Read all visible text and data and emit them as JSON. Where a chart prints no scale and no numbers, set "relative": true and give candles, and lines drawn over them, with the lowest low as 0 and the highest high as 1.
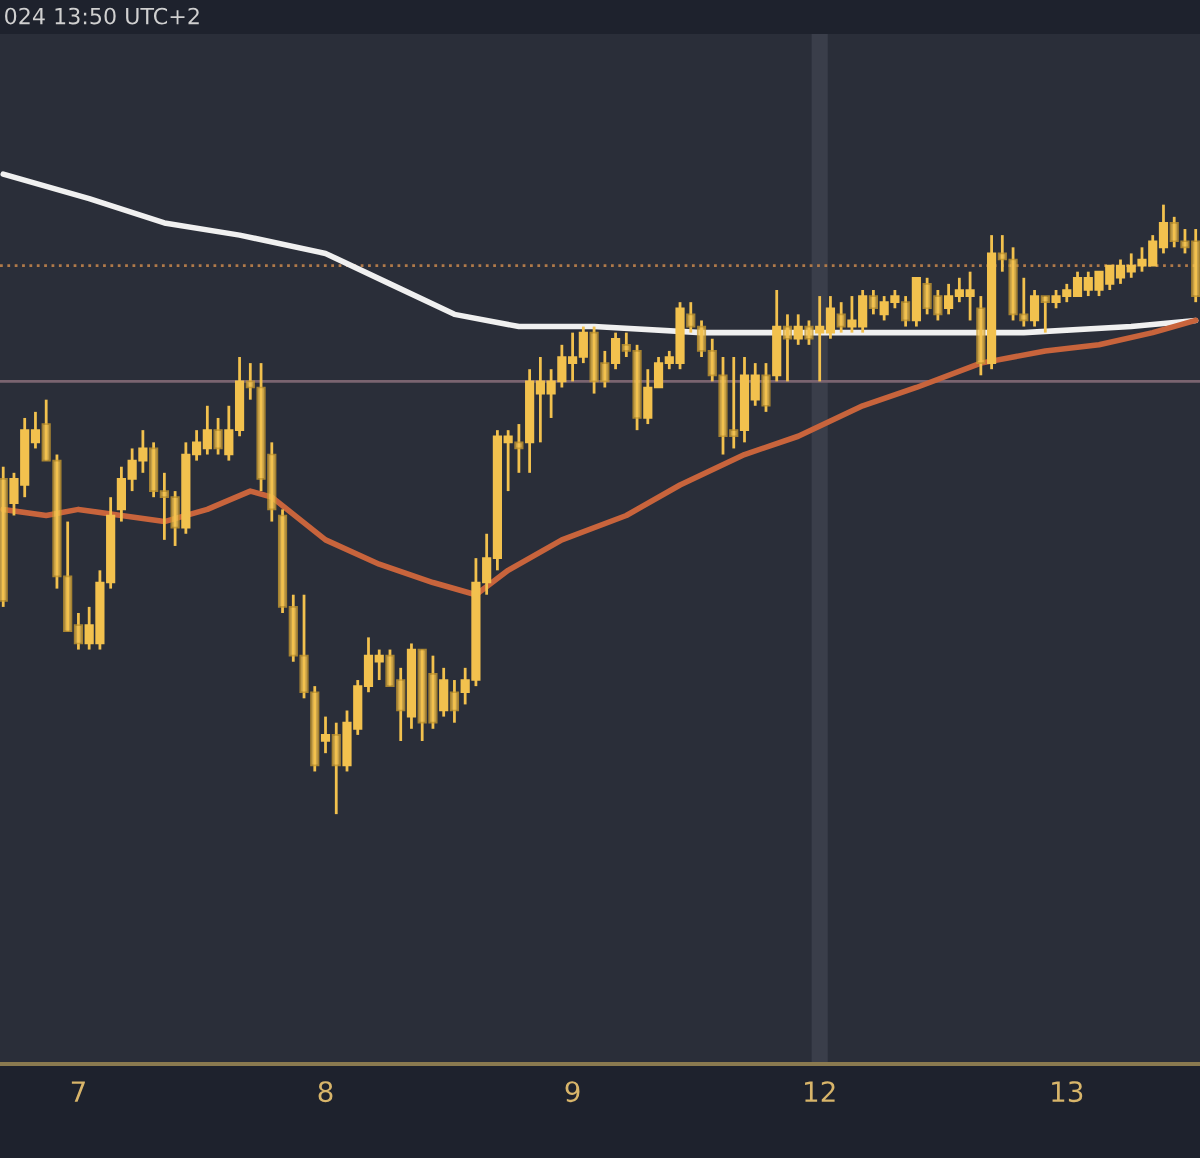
{
  "chart_data": {
    "type": "candlestick",
    "relative": true,
    "tick_labels": "x",
    "grid": false,
    "legend": false,
    "annotations": [
      "024 13:50 UTC+2"
    ],
    "categories": [
      null,
      null,
      null,
      null,
      null,
      null,
      null,
      "7",
      null,
      null,
      null,
      null,
      null,
      null,
      null,
      null,
      null,
      null,
      null,
      null,
      null,
      null,
      null,
      null,
      null,
      null,
      null,
      null,
      null,
      null,
      "8",
      null,
      null,
      null,
      null,
      null,
      null,
      null,
      null,
      null,
      null,
      null,
      null,
      null,
      null,
      null,
      null,
      null,
      null,
      null,
      null,
      null,
      null,
      "9",
      null,
      null,
      null,
      null,
      null,
      null,
      null,
      null,
      null,
      null,
      null,
      null,
      null,
      null,
      null,
      null,
      null,
      null,
      null,
      null,
      null,
      null,
      "12",
      null,
      null,
      null,
      null,
      null,
      null,
      null,
      null,
      null,
      null,
      null,
      null,
      null,
      null,
      null,
      null,
      null,
      null,
      null,
      null,
      null,
      null,
      "13",
      null,
      null,
      null,
      null,
      null,
      null,
      null,
      null,
      null,
      null,
      null,
      null
    ],
    "color": "#f2c14e",
    "ohlc": [
      [
        0.55,
        0.57,
        0.34,
        0.35
      ],
      [
        0.51,
        0.56,
        0.49,
        0.55
      ],
      [
        0.54,
        0.65,
        0.52,
        0.63
      ],
      [
        0.61,
        0.66,
        0.6,
        0.63
      ],
      [
        0.64,
        0.68,
        0.58,
        0.58
      ],
      [
        0.58,
        0.59,
        0.37,
        0.39
      ],
      [
        0.39,
        0.48,
        0.3,
        0.3
      ],
      [
        0.31,
        0.33,
        0.27,
        0.28
      ],
      [
        0.28,
        0.34,
        0.27,
        0.31
      ],
      [
        0.28,
        0.4,
        0.27,
        0.38
      ],
      [
        0.38,
        0.52,
        0.37,
        0.49
      ],
      [
        0.5,
        0.57,
        0.48,
        0.55
      ],
      [
        0.55,
        0.6,
        0.53,
        0.58
      ],
      [
        0.58,
        0.63,
        0.56,
        0.6
      ],
      [
        0.6,
        0.61,
        0.52,
        0.53
      ],
      [
        0.53,
        0.56,
        0.45,
        0.52
      ],
      [
        0.52,
        0.53,
        0.44,
        0.47
      ],
      [
        0.47,
        0.61,
        0.46,
        0.59
      ],
      [
        0.59,
        0.63,
        0.58,
        0.61
      ],
      [
        0.6,
        0.67,
        0.59,
        0.63
      ],
      [
        0.63,
        0.65,
        0.59,
        0.6
      ],
      [
        0.59,
        0.67,
        0.58,
        0.63
      ],
      [
        0.63,
        0.75,
        0.62,
        0.71
      ],
      [
        0.71,
        0.74,
        0.68,
        0.7
      ],
      [
        0.7,
        0.74,
        0.53,
        0.55
      ],
      [
        0.59,
        0.61,
        0.48,
        0.5
      ],
      [
        0.49,
        0.5,
        0.33,
        0.34
      ],
      [
        0.34,
        0.36,
        0.25,
        0.26
      ],
      [
        0.26,
        0.36,
        0.19,
        0.2
      ],
      [
        0.2,
        0.21,
        0.07,
        0.08
      ],
      [
        0.12,
        0.16,
        0.1,
        0.13
      ],
      [
        0.13,
        0.15,
        0.0,
        0.08
      ],
      [
        0.08,
        0.17,
        0.07,
        0.15
      ],
      [
        0.14,
        0.22,
        0.13,
        0.21
      ],
      [
        0.21,
        0.29,
        0.2,
        0.26
      ],
      [
        0.25,
        0.27,
        0.22,
        0.26
      ],
      [
        0.26,
        0.27,
        0.21,
        0.21
      ],
      [
        0.22,
        0.24,
        0.12,
        0.17
      ],
      [
        0.16,
        0.28,
        0.14,
        0.27
      ],
      [
        0.27,
        0.27,
        0.12,
        0.15
      ],
      [
        0.23,
        0.26,
        0.14,
        0.15
      ],
      [
        0.17,
        0.24,
        0.16,
        0.22
      ],
      [
        0.2,
        0.22,
        0.15,
        0.17
      ],
      [
        0.2,
        0.24,
        0.18,
        0.22
      ],
      [
        0.22,
        0.42,
        0.21,
        0.38
      ],
      [
        0.38,
        0.46,
        0.36,
        0.42
      ],
      [
        0.42,
        0.63,
        0.4,
        0.62
      ],
      [
        0.61,
        0.63,
        0.53,
        0.62
      ],
      [
        0.61,
        0.64,
        0.56,
        0.6
      ],
      [
        0.61,
        0.73,
        0.56,
        0.71
      ],
      [
        0.69,
        0.75,
        0.61,
        0.71
      ],
      [
        0.69,
        0.73,
        0.65,
        0.71
      ],
      [
        0.71,
        0.77,
        0.7,
        0.75
      ],
      [
        0.74,
        0.79,
        0.71,
        0.75
      ],
      [
        0.75,
        0.8,
        0.74,
        0.79
      ],
      [
        0.79,
        0.8,
        0.69,
        0.71
      ],
      [
        0.74,
        0.76,
        0.7,
        0.71
      ],
      [
        0.74,
        0.79,
        0.73,
        0.78
      ],
      [
        0.77,
        0.79,
        0.75,
        0.76
      ],
      [
        0.76,
        0.77,
        0.63,
        0.65
      ],
      [
        0.65,
        0.73,
        0.64,
        0.7
      ],
      [
        0.7,
        0.75,
        0.7,
        0.74
      ],
      [
        0.74,
        0.76,
        0.73,
        0.75
      ],
      [
        0.74,
        0.84,
        0.73,
        0.83
      ],
      [
        0.82,
        0.84,
        0.79,
        0.8
      ],
      [
        0.8,
        0.81,
        0.75,
        0.76
      ],
      [
        0.76,
        0.78,
        0.71,
        0.72
      ],
      [
        0.72,
        0.75,
        0.59,
        0.62
      ],
      [
        0.63,
        0.75,
        0.6,
        0.62
      ],
      [
        0.63,
        0.75,
        0.61,
        0.72
      ],
      [
        0.68,
        0.74,
        0.67,
        0.72
      ],
      [
        0.72,
        0.74,
        0.66,
        0.67
      ],
      [
        0.72,
        0.86,
        0.71,
        0.8
      ],
      [
        0.8,
        0.82,
        0.71,
        0.78
      ],
      [
        0.78,
        0.82,
        0.77,
        0.8
      ],
      [
        0.8,
        0.81,
        0.77,
        0.78
      ],
      [
        0.79,
        0.85,
        0.71,
        0.8
      ],
      [
        0.79,
        0.85,
        0.78,
        0.83
      ],
      [
        0.82,
        0.84,
        0.79,
        0.8
      ],
      [
        0.8,
        0.85,
        0.79,
        0.81
      ],
      [
        0.8,
        0.86,
        0.79,
        0.85
      ],
      [
        0.85,
        0.86,
        0.82,
        0.83
      ],
      [
        0.82,
        0.85,
        0.81,
        0.84
      ],
      [
        0.84,
        0.86,
        0.83,
        0.85
      ],
      [
        0.84,
        0.85,
        0.8,
        0.81
      ],
      [
        0.81,
        0.88,
        0.8,
        0.88
      ],
      [
        0.87,
        0.88,
        0.82,
        0.83
      ],
      [
        0.85,
        0.86,
        0.81,
        0.82
      ],
      [
        0.83,
        0.87,
        0.82,
        0.85
      ],
      [
        0.85,
        0.88,
        0.84,
        0.86
      ],
      [
        0.85,
        0.89,
        0.81,
        0.86
      ],
      [
        0.83,
        0.85,
        0.72,
        0.74
      ],
      [
        0.74,
        0.95,
        0.73,
        0.92
      ],
      [
        0.92,
        0.95,
        0.89,
        0.91
      ],
      [
        0.91,
        0.93,
        0.81,
        0.82
      ],
      [
        0.82,
        0.88,
        0.8,
        0.81
      ],
      [
        0.81,
        0.86,
        0.8,
        0.85
      ],
      [
        0.85,
        0.85,
        0.79,
        0.84
      ],
      [
        0.84,
        0.86,
        0.83,
        0.85
      ],
      [
        0.85,
        0.87,
        0.84,
        0.86
      ],
      [
        0.85,
        0.89,
        0.85,
        0.88
      ],
      [
        0.86,
        0.89,
        0.85,
        0.88
      ],
      [
        0.86,
        0.89,
        0.85,
        0.89
      ],
      [
        0.87,
        0.9,
        0.86,
        0.9
      ],
      [
        0.88,
        0.91,
        0.87,
        0.9
      ],
      [
        0.89,
        0.92,
        0.88,
        0.9
      ],
      [
        0.9,
        0.93,
        0.89,
        0.91
      ],
      [
        0.9,
        0.95,
        0.9,
        0.94
      ],
      [
        0.93,
        1.0,
        0.92,
        0.97
      ],
      [
        0.97,
        0.98,
        0.93,
        0.94
      ],
      [
        0.94,
        0.96,
        0.92,
        0.93
      ],
      [
        0.94,
        0.96,
        0.84,
        0.85
      ]
    ],
    "series": [
      {
        "type": "line",
        "color": "#f0f0f0",
        "values": [
          1.05,
          null,
          null,
          null,
          null,
          null,
          null,
          null,
          1.01,
          null,
          null,
          null,
          null,
          null,
          null,
          0.97,
          null,
          null,
          null,
          null,
          null,
          null,
          0.95,
          null,
          null,
          null,
          null,
          null,
          null,
          null,
          0.92,
          null,
          null,
          null,
          null,
          null,
          0.87,
          null,
          null,
          null,
          null,
          null,
          0.82,
          null,
          null,
          null,
          null,
          null,
          0.8,
          null,
          null,
          null,
          null,
          null,
          null,
          0.8,
          null,
          null,
          null,
          null,
          null,
          null,
          null,
          null,
          null,
          0.79,
          null,
          null,
          null,
          null,
          null,
          null,
          null,
          null,
          null,
          0.79,
          null,
          null,
          null,
          null,
          null,
          null,
          null,
          null,
          null,
          0.79,
          null,
          null,
          null,
          null,
          null,
          null,
          null,
          null,
          null,
          0.79,
          null,
          null,
          null,
          null,
          null,
          null,
          null,
          null,
          null,
          0.8,
          null,
          null,
          null,
          null,
          null,
          0.81
        ]
      },
      {
        "type": "line",
        "color": "#c8643c",
        "values": [
          0.5,
          null,
          null,
          null,
          0.49,
          null,
          null,
          0.5,
          null,
          null,
          null,
          0.49,
          null,
          null,
          null,
          0.48,
          null,
          null,
          null,
          0.5,
          null,
          null,
          null,
          0.53,
          null,
          0.52,
          null,
          null,
          null,
          null,
          0.45,
          null,
          null,
          null,
          null,
          0.41,
          null,
          null,
          null,
          null,
          0.38,
          null,
          null,
          null,
          0.36,
          null,
          null,
          0.4,
          null,
          null,
          null,
          null,
          0.45,
          null,
          null,
          null,
          null,
          null,
          0.49,
          null,
          null,
          null,
          null,
          0.54,
          null,
          null,
          null,
          null,
          null,
          0.59,
          null,
          null,
          null,
          null,
          0.62,
          null,
          null,
          null,
          null,
          null,
          0.67,
          null,
          null,
          null,
          null,
          0.7,
          null,
          null,
          null,
          null,
          null,
          0.74,
          null,
          null,
          null,
          null,
          null,
          0.76,
          null,
          null,
          null,
          null,
          0.77,
          null,
          null,
          null,
          null,
          0.79,
          null,
          null,
          null,
          0.81
        ]
      }
    ],
    "ref_lines": [
      {
        "axis": "y",
        "value": 0.9,
        "color": "#b07a4a",
        "line_style": "dotted"
      },
      {
        "axis": "y",
        "value": 0.71,
        "color": "#7a6470",
        "line_style": "solid"
      }
    ],
    "bands": [
      {
        "axis": "x",
        "from": "12",
        "to": "12",
        "color": "#3a3e4a"
      }
    ]
  }
}
